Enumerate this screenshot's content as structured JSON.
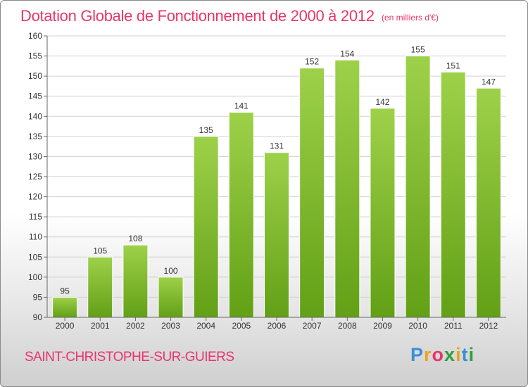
{
  "title": "Dotation Globale de Fonctionnement de 2000 à 2012",
  "subtitle": "(en milliers d'€)",
  "commune": "SAINT-CHRISTOPHE-SUR-GUIERS",
  "logo": {
    "letters": [
      "P",
      "r",
      "o",
      "x",
      "i",
      "t",
      "i"
    ],
    "colors": [
      "#3a8fd8",
      "#f0a11a",
      "#e8356a",
      "#2f9e3a",
      "#f0a11a",
      "#3a8fd8",
      "#2f9e3a"
    ]
  },
  "chart_data": {
    "type": "bar",
    "title": "Dotation Globale de Fonctionnement de 2000 à 2012",
    "subtitle": "(en milliers d'€)",
    "categories": [
      "2000",
      "2001",
      "2002",
      "2003",
      "2004",
      "2005",
      "2006",
      "2007",
      "2008",
      "2009",
      "2010",
      "2011",
      "2012"
    ],
    "values": [
      95,
      105,
      108,
      100,
      135,
      141,
      131,
      152,
      154,
      142,
      155,
      151,
      147
    ],
    "xlabel": "",
    "ylabel": "",
    "ylim": [
      90,
      160
    ],
    "yticks": [
      90,
      95,
      100,
      105,
      110,
      115,
      120,
      125,
      130,
      135,
      140,
      145,
      150,
      155,
      160
    ],
    "grid": true,
    "bar_color_top": "#9ed14a",
    "bar_color_bottom": "#62a016",
    "grid_color": "#d0d0d0"
  }
}
